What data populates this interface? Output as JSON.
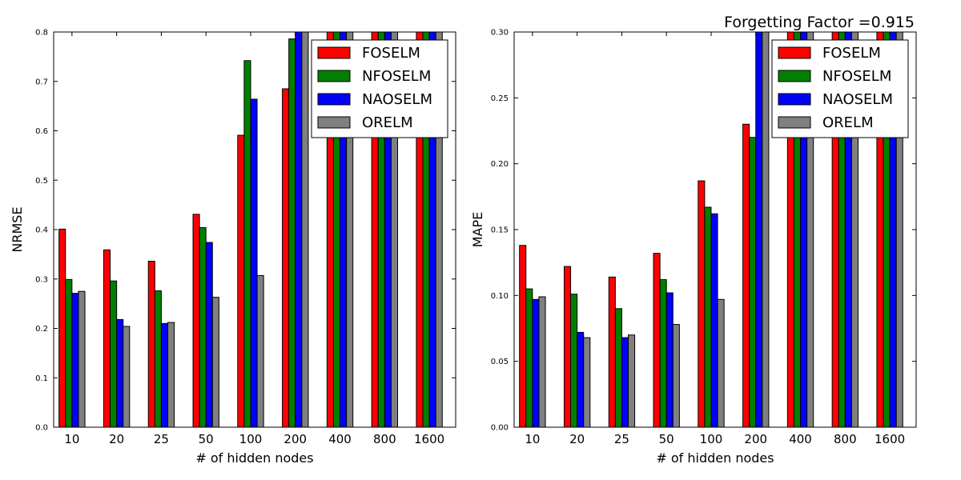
{
  "suptitle": "Forgetting Factor =0.915",
  "colors": {
    "FOSELM": "#ff0000",
    "NFOSELM": "#008000",
    "NAOSELM": "#0000ff",
    "ORELM": "#808080"
  },
  "chart_data": [
    {
      "type": "bar",
      "title": "",
      "xlabel": "# of hidden nodes",
      "ylabel": "NRMSE",
      "ylim": [
        0,
        0.8
      ],
      "yticks": [
        "0.0",
        "0.1",
        "0.2",
        "0.3",
        "0.4",
        "0.5",
        "0.6",
        "0.7",
        "0.8"
      ],
      "categories": [
        "10",
        "20",
        "25",
        "50",
        "100",
        "200",
        "400",
        "800",
        "1600"
      ],
      "legend_position": "top-right",
      "series": [
        {
          "name": "FOSELM",
          "values": [
            0.401,
            0.359,
            0.336,
            0.431,
            0.591,
            0.685,
            0.8,
            0.8,
            0.8
          ]
        },
        {
          "name": "NFOSELM",
          "values": [
            0.299,
            0.296,
            0.276,
            0.404,
            0.742,
            0.786,
            0.8,
            0.8,
            0.8
          ]
        },
        {
          "name": "NAOSELM",
          "values": [
            0.271,
            0.218,
            0.21,
            0.374,
            0.664,
            0.8,
            0.8,
            0.8,
            0.8
          ]
        },
        {
          "name": "ORELM",
          "values": [
            0.275,
            0.204,
            0.212,
            0.263,
            0.307,
            0.8,
            0.8,
            0.8,
            0.8
          ]
        }
      ]
    },
    {
      "type": "bar",
      "title": "",
      "xlabel": "# of hidden nodes",
      "ylabel": "MAPE",
      "ylim": [
        0,
        0.3
      ],
      "yticks": [
        "0.00",
        "0.05",
        "0.10",
        "0.15",
        "0.20",
        "0.25",
        "0.30"
      ],
      "categories": [
        "10",
        "20",
        "25",
        "50",
        "100",
        "200",
        "400",
        "800",
        "1600"
      ],
      "legend_position": "top-right",
      "series": [
        {
          "name": "FOSELM",
          "values": [
            0.138,
            0.122,
            0.114,
            0.132,
            0.187,
            0.23,
            0.3,
            0.3,
            0.3
          ]
        },
        {
          "name": "NFOSELM",
          "values": [
            0.105,
            0.101,
            0.09,
            0.112,
            0.167,
            0.22,
            0.3,
            0.3,
            0.3
          ]
        },
        {
          "name": "NAOSELM",
          "values": [
            0.097,
            0.072,
            0.068,
            0.102,
            0.162,
            0.3,
            0.3,
            0.3,
            0.3
          ]
        },
        {
          "name": "ORELM",
          "values": [
            0.099,
            0.068,
            0.07,
            0.078,
            0.097,
            0.3,
            0.3,
            0.3,
            0.3
          ]
        }
      ]
    }
  ]
}
